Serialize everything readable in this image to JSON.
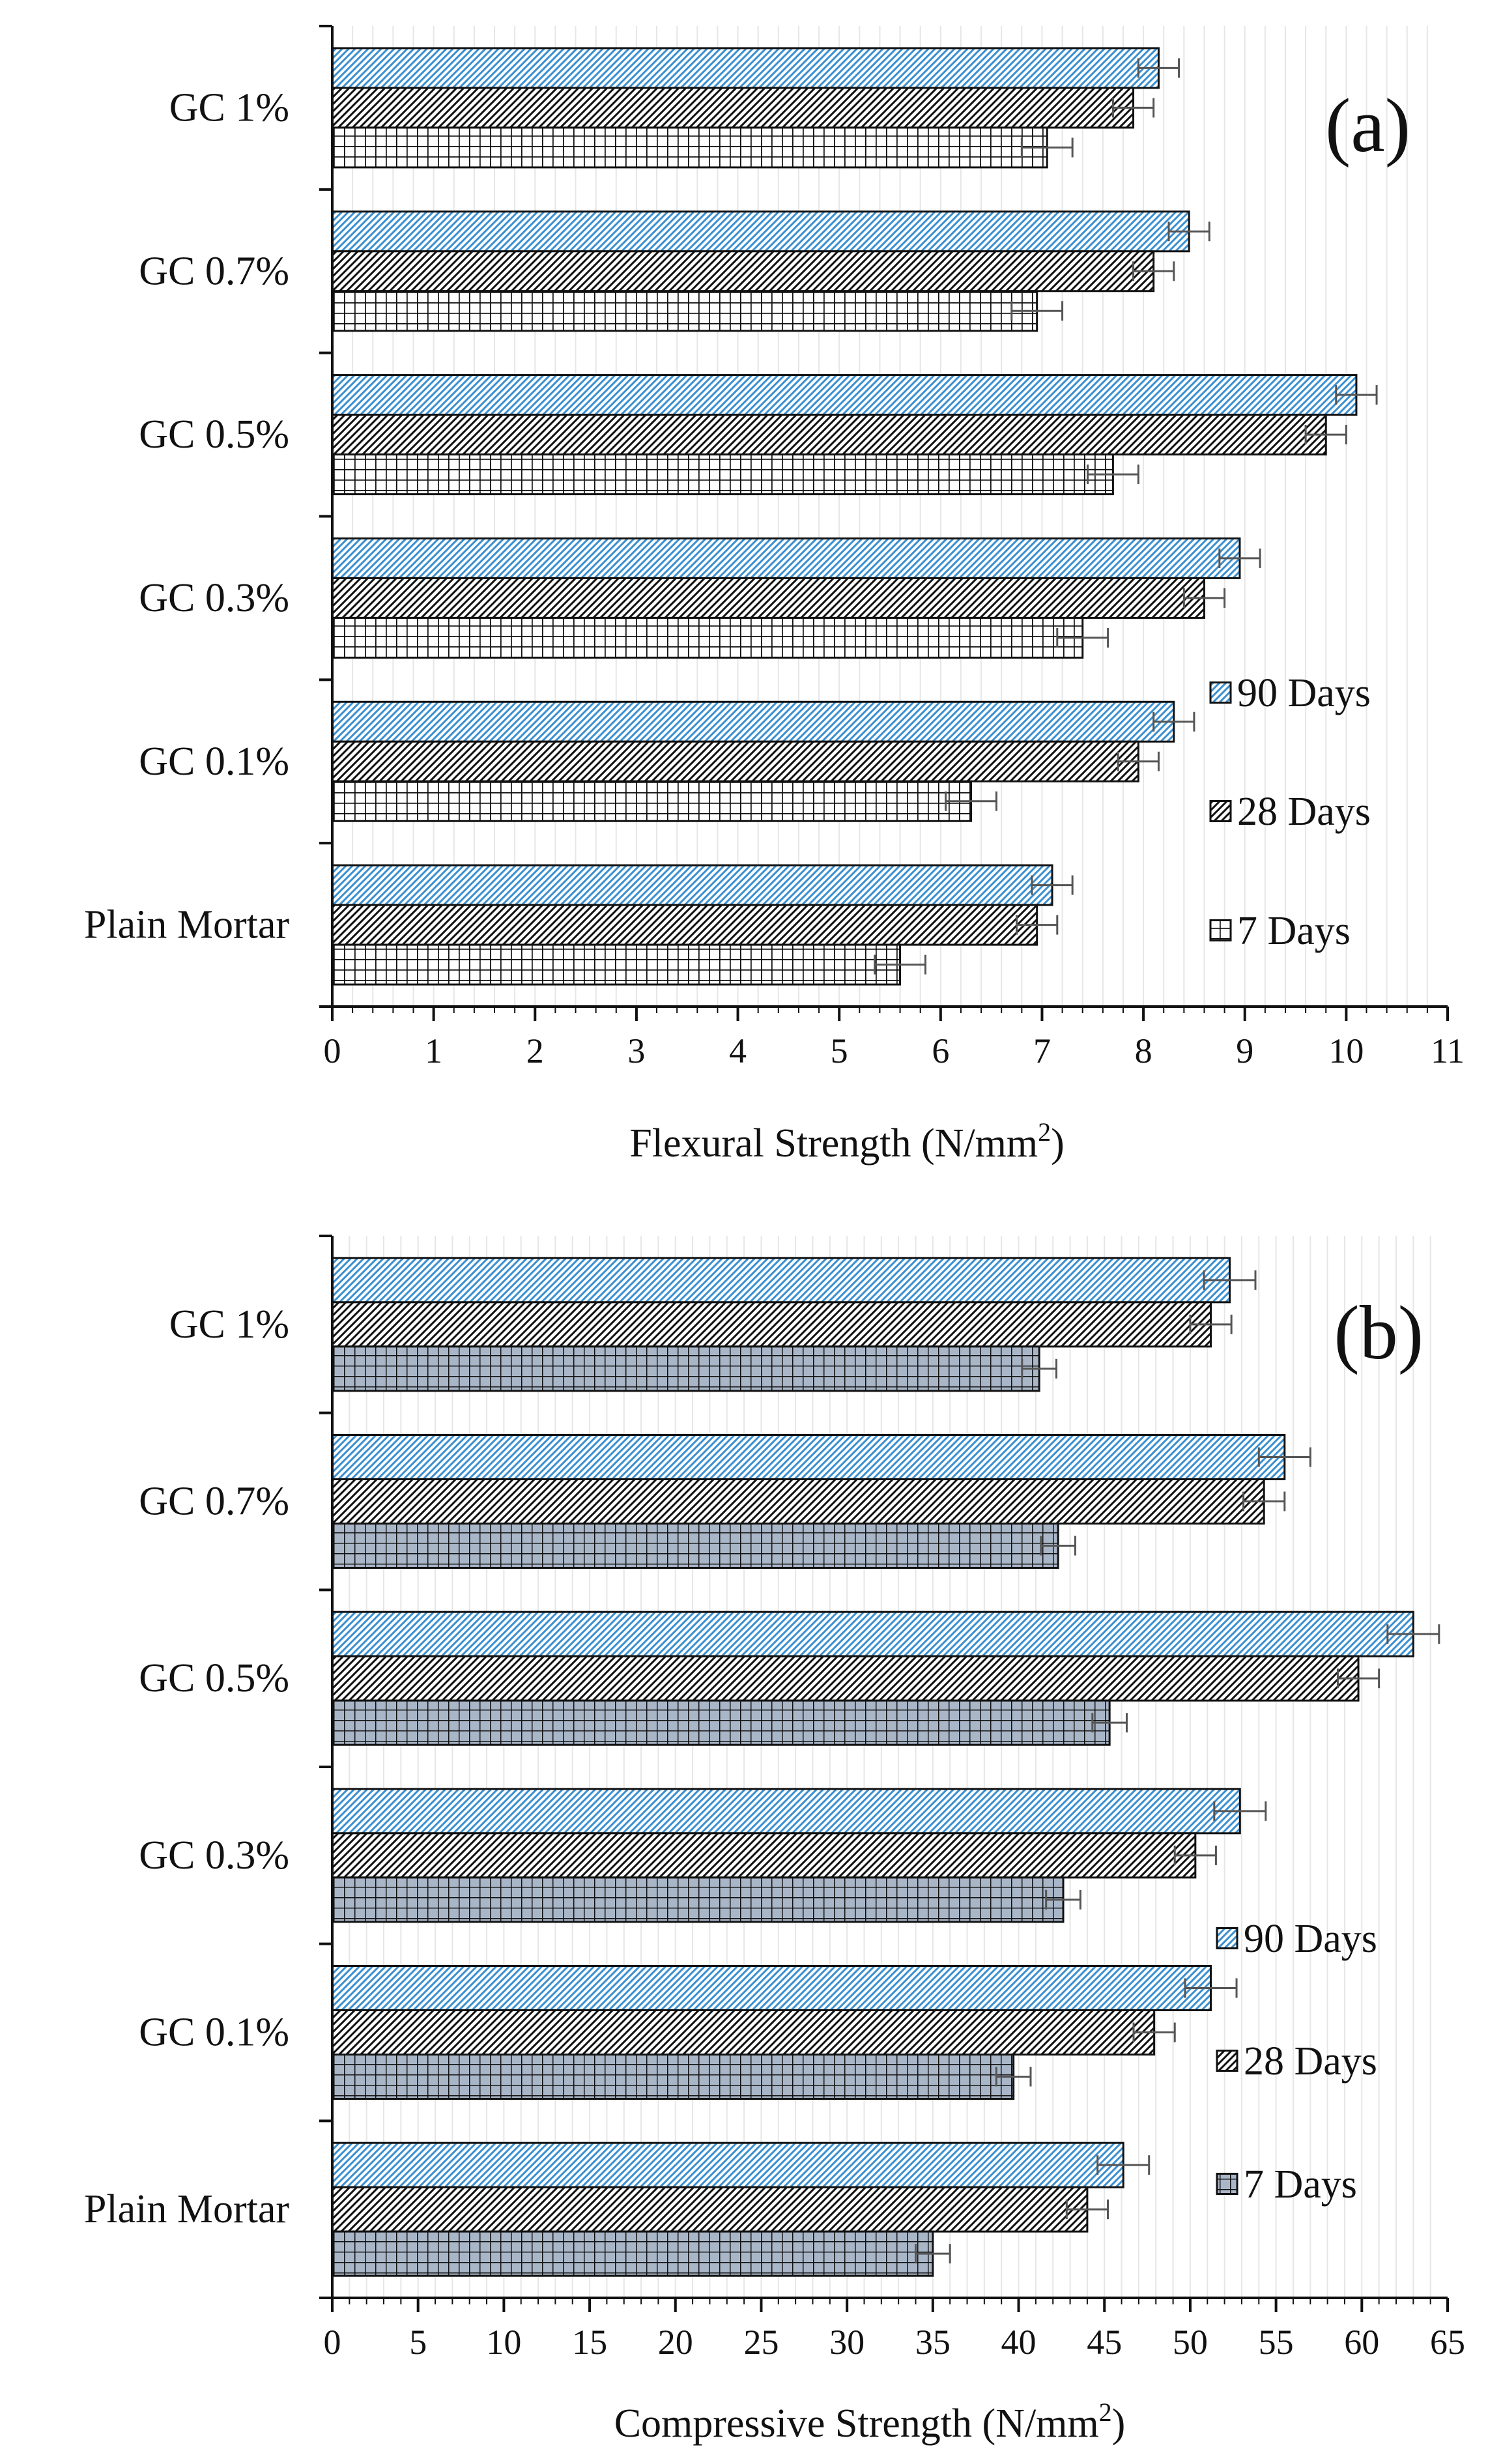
{
  "chart_data": [
    {
      "type": "bar",
      "orientation": "horizontal",
      "panel_label": "(a)",
      "title": "",
      "xlabel": "Flexural Strength (N/mm",
      "xlabel_sup": "2",
      "xlabel_close": ")",
      "xlim": [
        0,
        11
      ],
      "xticks": [
        0,
        1,
        2,
        3,
        4,
        5,
        6,
        7,
        8,
        9,
        10,
        11
      ],
      "categories": [
        "GC 1%",
        "GC 0.7%",
        "GC 0.5%",
        "GC 0.3%",
        "GC 0.1%",
        "Plain Mortar"
      ],
      "series": [
        {
          "name": "90 Days",
          "pattern": "diag-blue",
          "values": [
            8.15,
            8.45,
            10.1,
            8.95,
            8.3,
            7.1
          ],
          "errors": [
            0.2,
            0.2,
            0.2,
            0.2,
            0.2,
            0.2
          ]
        },
        {
          "name": "28 Days",
          "pattern": "diag-white",
          "values": [
            7.9,
            8.1,
            9.8,
            8.6,
            7.95,
            6.95
          ],
          "errors": [
            0.2,
            0.2,
            0.2,
            0.2,
            0.2,
            0.2
          ]
        },
        {
          "name": "7 Days",
          "pattern": "grid-white",
          "values": [
            7.05,
            6.95,
            7.7,
            7.4,
            6.3,
            5.6
          ],
          "errors": [
            0.25,
            0.25,
            0.25,
            0.25,
            0.25,
            0.25
          ]
        }
      ],
      "legend_order": [
        0,
        1,
        2
      ],
      "legend": "right"
    },
    {
      "type": "bar",
      "orientation": "horizontal",
      "panel_label": "(b)",
      "title": "",
      "xlabel": "Compressive Strength (N/mm",
      "xlabel_sup": "2",
      "xlabel_close": ")",
      "xlim": [
        0,
        65
      ],
      "xticks": [
        0,
        5,
        10,
        15,
        20,
        25,
        30,
        35,
        40,
        45,
        50,
        55,
        60,
        65
      ],
      "categories": [
        "GC 1%",
        "GC 0.7%",
        "GC 0.5%",
        "GC 0.3%",
        "GC 0.1%",
        "Plain Mortar"
      ],
      "series": [
        {
          "name": "90 Days",
          "pattern": "diag-blue",
          "values": [
            52.3,
            55.5,
            63.0,
            52.9,
            51.2,
            46.1
          ],
          "errors": [
            1.5,
            1.5,
            1.5,
            1.5,
            1.5,
            1.5
          ]
        },
        {
          "name": "28 Days",
          "pattern": "diag-white",
          "values": [
            51.2,
            54.3,
            59.8,
            50.3,
            47.9,
            44.0
          ],
          "errors": [
            1.2,
            1.2,
            1.2,
            1.2,
            1.2,
            1.2
          ]
        },
        {
          "name": "7 Days",
          "pattern": "grid-gray",
          "values": [
            41.2,
            42.3,
            45.3,
            42.6,
            39.7,
            35.0
          ],
          "errors": [
            1.0,
            1.0,
            1.0,
            1.0,
            1.0,
            1.0
          ]
        }
      ],
      "legend_order": [
        0,
        1,
        2
      ],
      "legend": "right"
    }
  ],
  "colors": {
    "blue_hatch": "#3a8fd0",
    "gray_fill": "#a9b6c8",
    "grid": "#e6e6e6",
    "ink": "#111111",
    "error": "#555555"
  }
}
